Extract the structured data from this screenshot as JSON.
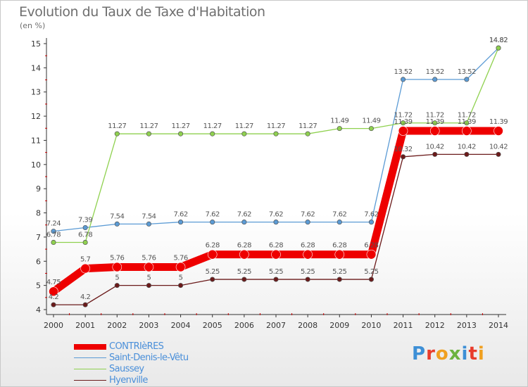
{
  "colors": {
    "contrieres": "#ee0000",
    "saint_denis": "#5b9bd5",
    "saussey": "#8fd14f",
    "hyenville": "#6b1a1a",
    "axis": "#333333",
    "grid_tick": "#cc0000",
    "label": "#555555"
  },
  "chart_data": {
    "type": "line",
    "title": "Evolution du Taux de Taxe d'Habitation",
    "ylabel": "(en %)",
    "xlabel": "",
    "ylim": [
      4,
      15
    ],
    "yticks": [
      4,
      5,
      6,
      7,
      8,
      9,
      10,
      11,
      12,
      13,
      14,
      15
    ],
    "x": [
      "2000",
      "2001",
      "2002",
      "2003",
      "2004",
      "2005",
      "2006",
      "2007",
      "2008",
      "2009",
      "2010",
      "2011",
      "2012",
      "2013",
      "2014"
    ],
    "grid": false,
    "legend_position": "bottom-left",
    "series": [
      {
        "name": "CONTRIèRES",
        "color_key": "contrieres",
        "values": [
          4.75,
          5.7,
          5.76,
          5.76,
          5.76,
          6.28,
          6.28,
          6.28,
          6.28,
          6.28,
          6.28,
          11.39,
          11.39,
          11.39,
          11.39
        ],
        "labels": [
          "4.75",
          "5.7",
          "5.76",
          "5.76",
          "5.76",
          "6.28",
          "6.28",
          "6.28",
          "6.28",
          "6.28",
          "6.28",
          "11.39",
          "11.39",
          "11.39",
          "11.39"
        ]
      },
      {
        "name": "Saint-Denis-le-Vêtu",
        "color_key": "saint_denis",
        "values": [
          7.24,
          7.39,
          7.54,
          7.54,
          7.62,
          7.62,
          7.62,
          7.62,
          7.62,
          7.62,
          7.62,
          13.52,
          13.52,
          13.52,
          14.82
        ],
        "labels": [
          "7.24",
          "7.39",
          "7.54",
          "7.54",
          "7.62",
          "7.62",
          "7.62",
          "7.62",
          "7.62",
          "7.62",
          "7.62",
          "13.52",
          "13.52",
          "13.52",
          "14.82"
        ]
      },
      {
        "name": "Saussey",
        "color_key": "saussey",
        "values": [
          6.78,
          6.78,
          11.27,
          11.27,
          11.27,
          11.27,
          11.27,
          11.27,
          11.27,
          11.49,
          11.49,
          11.72,
          11.72,
          11.72,
          14.82
        ],
        "labels": [
          "6.78",
          "6.78",
          "11.27",
          "11.27",
          "11.27",
          "11.27",
          "11.27",
          "11.27",
          "11.27",
          "11.49",
          "11.49",
          "11.72",
          "11.72",
          "11.72",
          "14.82"
        ]
      },
      {
        "name": "Hyenville",
        "color_key": "hyenville",
        "values": [
          4.2,
          4.2,
          5,
          5,
          5,
          5.25,
          5.25,
          5.25,
          5.25,
          5.25,
          5.25,
          10.32,
          10.42,
          10.42,
          10.42
        ],
        "labels": [
          "4.2",
          "4.2",
          "5",
          "5",
          "5",
          "5.25",
          "5.25",
          "5.25",
          "5.25",
          "5.25",
          "5.25",
          "10.32",
          "10.42",
          "10.42",
          "10.42"
        ]
      }
    ]
  },
  "brand": {
    "text": "Proxiti",
    "letter_colors": [
      "#3d8fd6",
      "#e83c2c",
      "#f0a020",
      "#6cb33e",
      "#3d8fd6",
      "#e83c2c",
      "#f0a020"
    ]
  }
}
